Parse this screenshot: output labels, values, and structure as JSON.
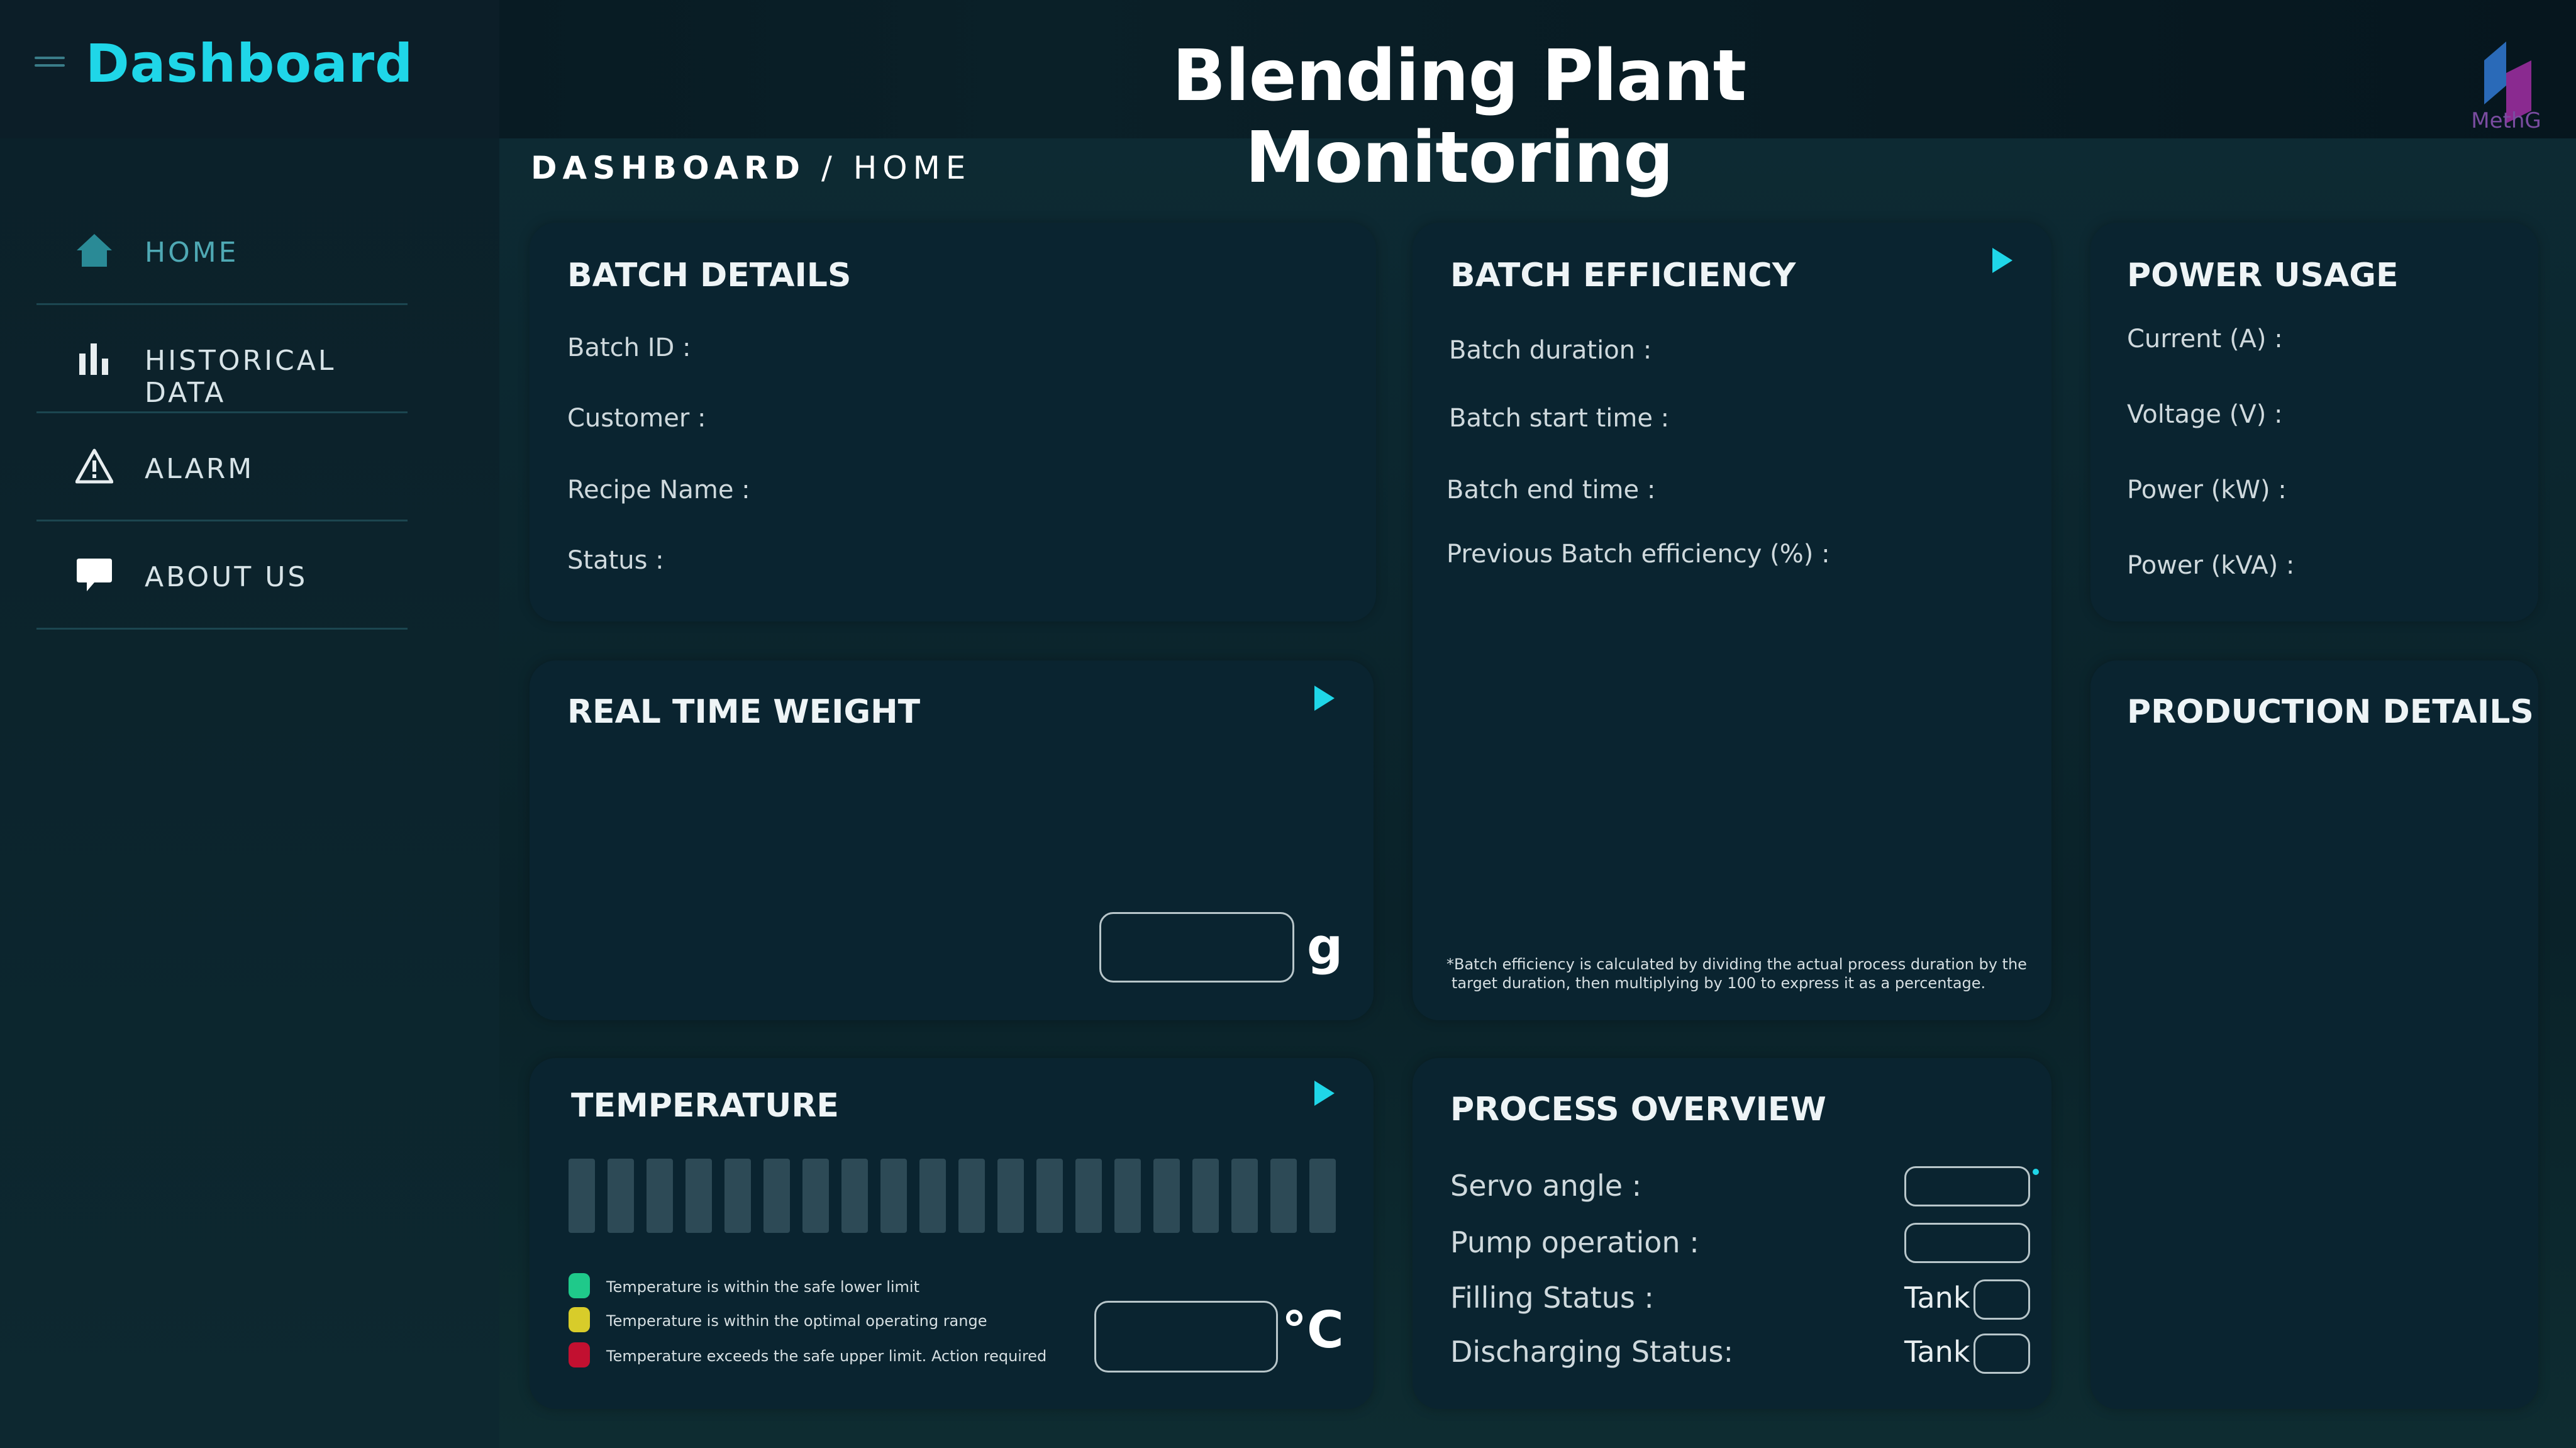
{
  "header": {
    "brand": "Dashboard",
    "title": "Blending Plant Monitoring",
    "logo_text": "MethG"
  },
  "sidebar": {
    "items": [
      {
        "label": "HOME",
        "icon": "home-icon",
        "active": true
      },
      {
        "label": "HISTORICAL DATA",
        "icon": "bar-chart-icon",
        "active": false
      },
      {
        "label": "ALARM",
        "icon": "warning-icon",
        "active": false
      },
      {
        "label": "ABOUT US",
        "icon": "chat-icon",
        "active": false
      }
    ]
  },
  "breadcrumb": {
    "root": "DASHBOARD",
    "separator": "/",
    "current": "HOME"
  },
  "batch_details": {
    "title": "BATCH DETAILS",
    "fields": [
      "Batch ID :",
      "Customer :",
      "Recipe Name :",
      "Status :"
    ]
  },
  "batch_efficiency": {
    "title": "BATCH EFFICIENCY",
    "fields": [
      "Batch duration :",
      "Batch start time :",
      "Batch end time :",
      "Previous Batch efficiency (%) :"
    ],
    "footnote_line1": "*Batch efficiency is calculated by dividing the actual process duration by the",
    "footnote_line2": "target duration, then multiplying by 100 to express it as a percentage."
  },
  "power_usage": {
    "title": "POWER USAGE",
    "fields": [
      "Current (A) :",
      "Voltage (V) :",
      "Power (kW) :",
      "Power (kVA) :"
    ]
  },
  "real_time_weight": {
    "title": "REAL TIME WEIGHT",
    "unit": "g"
  },
  "production_details": {
    "title": "PRODUCTION DETAILS"
  },
  "temperature": {
    "title": "TEMPERATURE",
    "unit": "°C",
    "legend": [
      {
        "text": "Temperature is within the safe lower limit",
        "color": "#1fc98a"
      },
      {
        "text": "Temperature is within the optimal operating range",
        "color": "#d8cc2a"
      },
      {
        "text": "Temperature exceeds the safe upper limit. Action required",
        "color": "#c21030"
      }
    ]
  },
  "process_overview": {
    "title": "PROCESS OVERVIEW",
    "fields": [
      "Servo angle :",
      "Pump operation :",
      "Filling Status :",
      "Discharging Status:"
    ],
    "tank_label": "Tank"
  },
  "colors": {
    "accent": "#1fd6e8",
    "card": "#0a2430",
    "background": "#0c2830"
  }
}
